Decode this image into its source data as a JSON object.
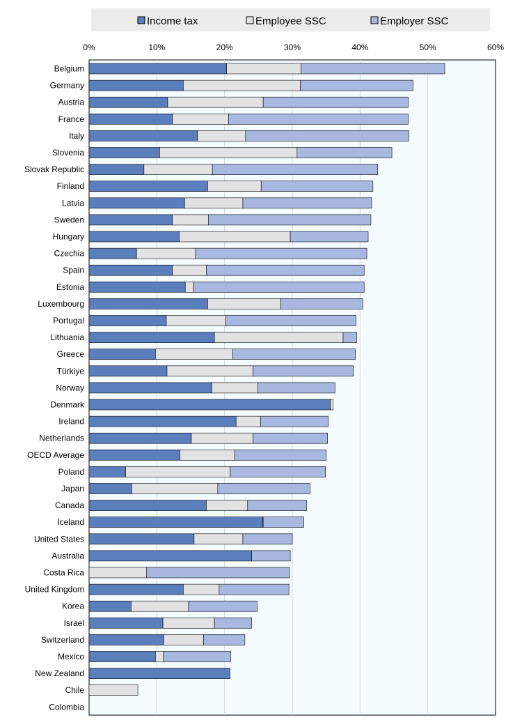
{
  "chart_data": {
    "type": "bar",
    "orientation": "horizontal",
    "stacked": true,
    "title": "",
    "xlabel": "",
    "ylabel": "",
    "xlim": [
      0,
      60
    ],
    "x_ticks": [
      "0%",
      "10%",
      "20%",
      "30%",
      "40%",
      "50%",
      "60%"
    ],
    "legend_position": "top",
    "grid": true,
    "colors": {
      "Income tax": "#5b7fbd",
      "Employee SSC": "#e2e2e2",
      "Employer SSC": "#a8b8e0",
      "plot_background": "#f5fcff",
      "legend_background": "#ececec"
    },
    "categories": [
      "Belgium",
      "Germany",
      "Austria",
      "France",
      "Italy",
      "Slovenia",
      "Slovak Republic",
      "Finland",
      "Latvia",
      "Sweden",
      "Hungary",
      "Czechia",
      "Spain",
      "Estonia",
      "Luxembourg",
      "Portugal",
      "Lithuania",
      "Greece",
      "Türkiye",
      "Norway",
      "Denmark",
      "Ireland",
      "Netherlands",
      "OECD Average",
      "Poland",
      "Japan",
      "Canada",
      "Iceland",
      "United States",
      "Australia",
      "Costa Rica",
      "United Kingdom",
      "Korea",
      "Israel",
      "Switzerland",
      "Mexico",
      "New Zealand",
      "Chile",
      "Colombia"
    ],
    "series": [
      {
        "name": "Income tax",
        "values": [
          20.3,
          13.9,
          11.6,
          12.3,
          16.0,
          10.4,
          8.1,
          17.5,
          14.1,
          12.3,
          13.3,
          7.0,
          12.3,
          14.2,
          17.5,
          11.4,
          18.5,
          9.8,
          11.5,
          18.1,
          35.6,
          21.7,
          15.1,
          13.4,
          5.4,
          6.3,
          17.3,
          25.6,
          15.5,
          24.0,
          0.0,
          13.9,
          6.2,
          10.9,
          11.0,
          9.8,
          20.8,
          0.0,
          0.0
        ]
      },
      {
        "name": "Employee SSC",
        "values": [
          11.0,
          17.3,
          14.1,
          8.3,
          7.1,
          20.3,
          10.1,
          7.9,
          8.6,
          5.3,
          16.4,
          8.7,
          5.0,
          1.2,
          10.8,
          8.8,
          19.0,
          11.4,
          12.7,
          6.8,
          0.4,
          3.6,
          9.1,
          8.1,
          15.4,
          12.7,
          6.1,
          0.1,
          7.2,
          0.0,
          8.5,
          5.3,
          8.5,
          7.6,
          5.9,
          1.2,
          0.0,
          7.2,
          0.0
        ]
      },
      {
        "name": "Employer SSC",
        "values": [
          21.2,
          16.6,
          21.4,
          26.5,
          24.1,
          14.0,
          24.4,
          16.5,
          19.0,
          24.0,
          11.5,
          25.3,
          23.3,
          25.2,
          12.1,
          19.2,
          2.0,
          18.1,
          14.8,
          11.4,
          0.0,
          10.0,
          11.0,
          13.5,
          14.1,
          13.6,
          8.7,
          6.0,
          7.3,
          5.7,
          21.1,
          10.3,
          10.1,
          5.5,
          6.1,
          9.9,
          0.0,
          0.0,
          0.0
        ]
      }
    ]
  }
}
